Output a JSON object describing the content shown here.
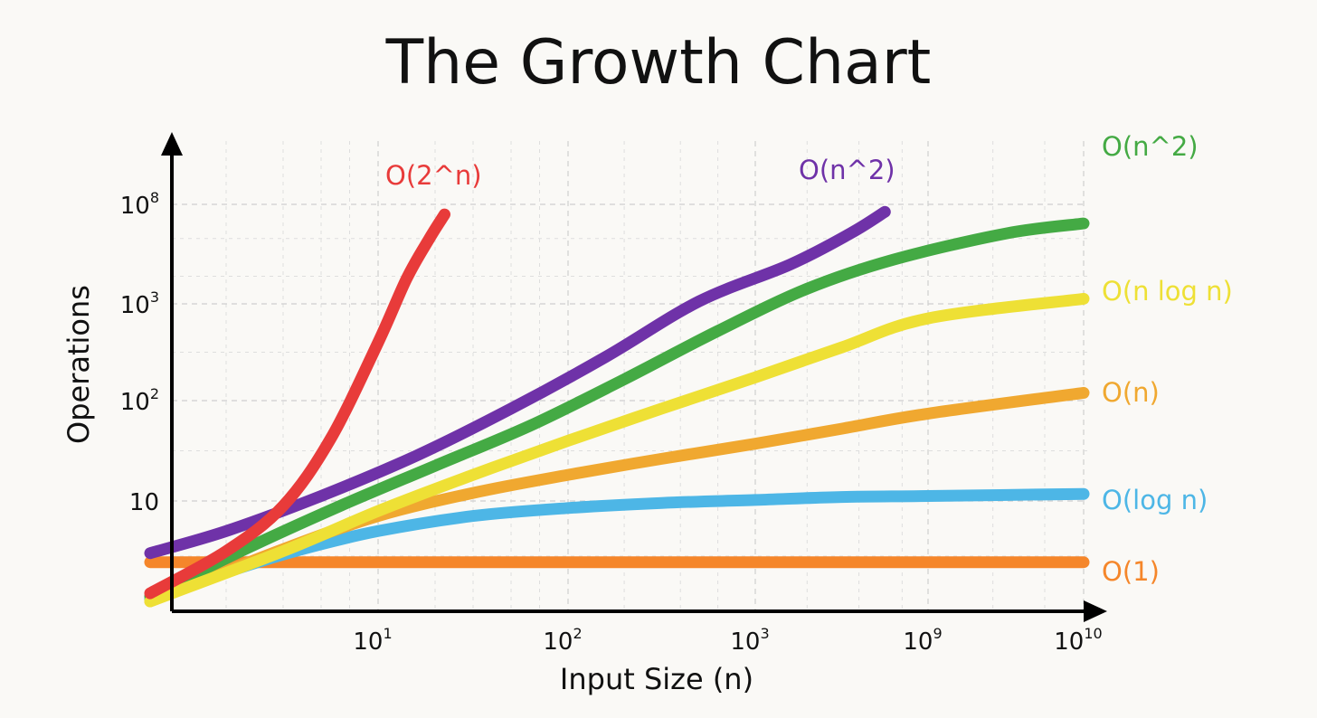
{
  "chart_data": {
    "type": "line",
    "title": "The Growth Chart",
    "xlabel": "Input Size (n)",
    "ylabel": "Operations",
    "x_scale": "log (non-uniform labels)",
    "y_scale": "log (non-uniform labels)",
    "grid": true,
    "x_ticks": [
      {
        "base": "10",
        "exp": "1",
        "pos": 1
      },
      {
        "base": "10",
        "exp": "2",
        "pos": 2
      },
      {
        "base": "10",
        "exp": "3",
        "pos": 3
      },
      {
        "base": "10",
        "exp": "9",
        "pos": 4
      },
      {
        "base": "10",
        "exp": "10",
        "pos": 4.6
      }
    ],
    "y_ticks": [
      {
        "base": "10",
        "exp": "",
        "pos": 1
      },
      {
        "base": "10",
        "exp": "2",
        "pos": 2
      },
      {
        "base": "10",
        "exp": "3",
        "pos": 3
      },
      {
        "base": "10",
        "exp": "8",
        "pos": 4.98
      }
    ],
    "x_range": [
      -0.2,
      4.9
    ],
    "y_range": [
      -0.1,
      5.6
    ],
    "series": [
      {
        "name": "O(1)",
        "label": "O(1)",
        "color": "#f5862a",
        "points": [
          [
            -0.2,
            0.39
          ],
          [
            4.6,
            0.39
          ]
        ]
      },
      {
        "name": "O(log n)",
        "label": "O(log n)",
        "color": "#4db6e6",
        "points": [
          [
            -0.2,
            0.02
          ],
          [
            0.25,
            0.32
          ],
          [
            0.6,
            0.52
          ],
          [
            1.0,
            0.7
          ],
          [
            1.5,
            0.85
          ],
          [
            2.0,
            0.93
          ],
          [
            2.5,
            0.98
          ],
          [
            3.0,
            1.01
          ],
          [
            3.5,
            1.04
          ],
          [
            4.0,
            1.05
          ],
          [
            4.6,
            1.07
          ]
        ]
      },
      {
        "name": "O(n)",
        "label": "O(n)",
        "color": "#f0a830",
        "points": [
          [
            -0.2,
            0.0
          ],
          [
            0.5,
            0.52
          ],
          [
            1.0,
            0.85
          ],
          [
            1.5,
            1.08
          ],
          [
            2.0,
            1.26
          ],
          [
            2.5,
            1.42
          ],
          [
            3.0,
            1.57
          ],
          [
            3.5,
            1.72
          ],
          [
            4.0,
            1.87
          ],
          [
            4.6,
            2.08
          ]
        ]
      },
      {
        "name": "O(n log n)",
        "label": "O(n log n)",
        "color": "#eee035",
        "points": [
          [
            -0.2,
            0.0
          ],
          [
            0.5,
            0.5
          ],
          [
            1.0,
            0.9
          ],
          [
            1.5,
            1.26
          ],
          [
            2.0,
            1.6
          ],
          [
            2.5,
            1.92
          ],
          [
            3.0,
            2.24
          ],
          [
            3.5,
            2.55
          ],
          [
            4.0,
            2.85
          ],
          [
            4.6,
            3.1
          ]
        ]
      },
      {
        "name": "O(n^2) green",
        "label": "O(n^2)",
        "color": "#44aa44",
        "points": [
          [
            -0.2,
            0.05
          ],
          [
            0.3,
            0.52
          ],
          [
            0.8,
            0.95
          ],
          [
            1.3,
            1.35
          ],
          [
            1.8,
            1.75
          ],
          [
            2.3,
            2.22
          ],
          [
            2.8,
            2.72
          ],
          [
            3.3,
            3.3
          ],
          [
            3.8,
            3.88
          ],
          [
            4.3,
            4.4
          ],
          [
            4.6,
            4.6
          ]
        ]
      },
      {
        "name": "O(n^2) purple",
        "label": "O(n^2)",
        "color": "#6f32a8",
        "points": [
          [
            -0.2,
            0.48
          ],
          [
            0.2,
            0.7
          ],
          [
            0.7,
            1.05
          ],
          [
            1.2,
            1.45
          ],
          [
            1.7,
            1.92
          ],
          [
            2.2,
            2.45
          ],
          [
            2.7,
            3.05
          ],
          [
            3.2,
            3.78
          ],
          [
            3.55,
            4.4
          ],
          [
            3.75,
            4.83
          ]
        ]
      },
      {
        "name": "O(2^n)",
        "label": "O(2^n)",
        "color": "#e83b3a",
        "points": [
          [
            -0.2,
            0.08
          ],
          [
            0.2,
            0.5
          ],
          [
            0.5,
            0.95
          ],
          [
            0.75,
            1.62
          ],
          [
            1.0,
            2.6
          ],
          [
            1.15,
            3.5
          ],
          [
            1.27,
            4.3
          ],
          [
            1.35,
            4.78
          ]
        ]
      }
    ]
  }
}
